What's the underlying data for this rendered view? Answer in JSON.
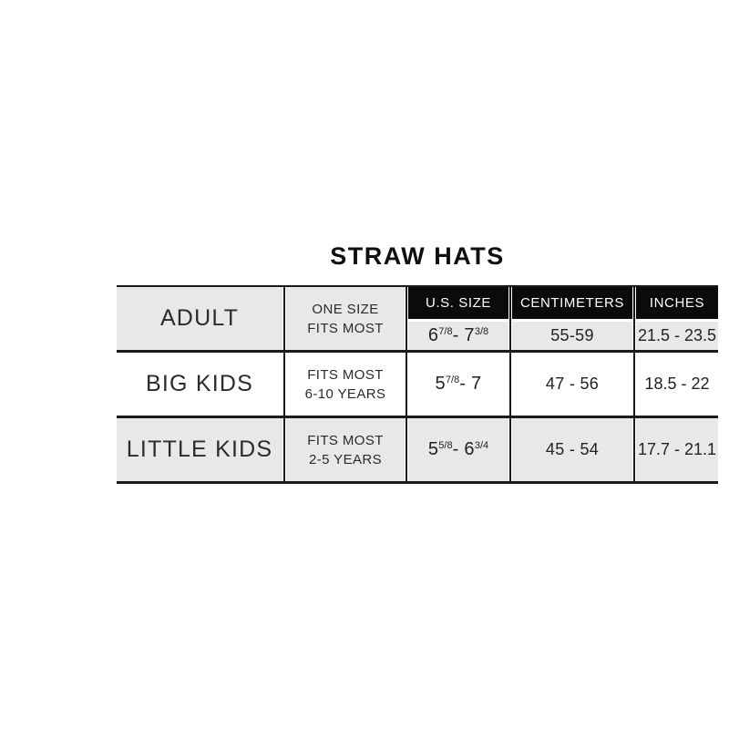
{
  "title": "STRAW HATS",
  "colors": {
    "page_background": "#ffffff",
    "header_bg": "#0b0b0b",
    "header_text": "#ffffff",
    "shaded_row_bg": "#e8e8e8",
    "plain_row_bg": "#ffffff",
    "border": "#1b1b1b",
    "text": "#2b2b2b"
  },
  "table": {
    "headers": {
      "us_size": "U.S. SIZE",
      "centimeters": "CENTIMETERS",
      "inches": "INCHES"
    },
    "rows": [
      {
        "label": "ADULT",
        "fit_line1": "ONE SIZE",
        "fit_line2": "FITS MOST",
        "us_size": {
          "base1": "6",
          "frac1": "7/8",
          "mid": "- 7",
          "frac2": "3/8"
        },
        "centimeters": "55-59",
        "inches": "21.5 - 23.5"
      },
      {
        "label": "BIG KIDS",
        "fit_line1": "FITS MOST",
        "fit_line2": "6-10 YEARS",
        "us_size": {
          "base1": "5",
          "frac1": "7/8",
          "mid": "- 7",
          "frac2": ""
        },
        "centimeters": "47 - 56",
        "inches": "18.5 - 22"
      },
      {
        "label": "LITTLE KIDS",
        "fit_line1": "FITS MOST",
        "fit_line2": "2-5 YEARS",
        "us_size": {
          "base1": "5",
          "frac1": "5/8",
          "mid": "- 6",
          "frac2": "3/4"
        },
        "centimeters": "45 - 54",
        "inches": "17.7 - 21.1"
      }
    ]
  }
}
